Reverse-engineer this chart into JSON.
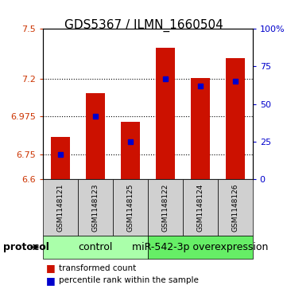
{
  "title": "GDS5367 / ILMN_1660504",
  "samples": [
    "GSM1148121",
    "GSM1148123",
    "GSM1148125",
    "GSM1148122",
    "GSM1148124",
    "GSM1148126"
  ],
  "bar_tops": [
    6.855,
    7.115,
    6.945,
    7.385,
    7.205,
    7.325
  ],
  "bar_bottom": 6.6,
  "percentile_values": [
    6.748,
    6.975,
    6.825,
    7.2,
    7.16,
    7.185
  ],
  "ylim_left": [
    6.6,
    7.5
  ],
  "ylim_right": [
    0,
    100
  ],
  "yticks_left": [
    6.6,
    6.75,
    6.975,
    7.2,
    7.5
  ],
  "ytick_labels_left": [
    "6.6",
    "6.75",
    "6.975",
    "7.2",
    "7.5"
  ],
  "yticks_right": [
    0,
    25,
    50,
    75,
    100
  ],
  "ytick_labels_right": [
    "0",
    "25",
    "50",
    "75",
    "100%"
  ],
  "hlines": [
    6.75,
    6.975,
    7.2
  ],
  "bar_color": "#cc1100",
  "blue_color": "#0000cc",
  "bar_width": 0.55,
  "group_labels": [
    "control",
    "miR-542-3p overexpression"
  ],
  "group_ranges": [
    [
      0,
      3
    ],
    [
      3,
      6
    ]
  ],
  "group_colors": [
    "#aaffaa",
    "#66ee66"
  ],
  "protocol_label": "protocol",
  "legend_red": "transformed count",
  "legend_blue": "percentile rank within the sample",
  "title_fontsize": 11,
  "tick_fontsize": 8,
  "group_label_fontsize": 9
}
